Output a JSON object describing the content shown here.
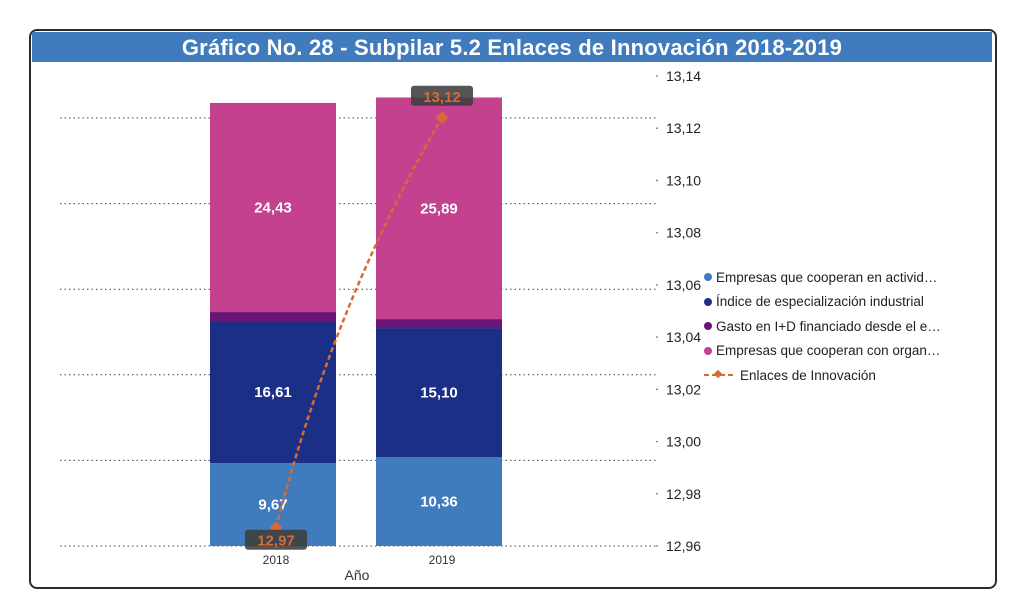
{
  "title": "Gráfico No. 28 - Subpilar 5.2 Enlaces de Innovación 2018-2019",
  "chart_data": {
    "type": "bar",
    "stacked": true,
    "title": "Gráfico No. 28 - Subpilar 5.2 Enlaces de Innovación 2018-2019",
    "xlabel": "Año",
    "ylabel": "",
    "categories": [
      "2018",
      "2019"
    ],
    "ylim": [
      0,
      50
    ],
    "left_axis_visible": false,
    "grid": true,
    "series": [
      {
        "name": "Empresas que cooperan en activid…",
        "type": "bar",
        "color": "#3f7bbd",
        "values": [
          9.67,
          10.36
        ],
        "labels": [
          "9,67",
          "10,36"
        ]
      },
      {
        "name": "Índice de especialización industrial",
        "type": "bar",
        "color": "#1b2f86",
        "values": [
          16.61,
          15.1
        ],
        "labels": [
          "16,61",
          "15,10"
        ]
      },
      {
        "name": "Gasto en I+D financiado desde el e…",
        "type": "bar",
        "color": "#6b1677",
        "values": [
          1.05,
          1.05
        ],
        "labels": [
          "",
          ""
        ]
      },
      {
        "name": "Empresas que cooperan con organ…",
        "type": "bar",
        "color": "#c3418e",
        "values": [
          24.43,
          25.89
        ],
        "labels": [
          "24,43",
          "25,89"
        ]
      },
      {
        "name": "Enlaces de Innovación",
        "type": "line",
        "axis": "right",
        "color": "#d66b36",
        "values": [
          12.967,
          13.124
        ],
        "labels": [
          "12,97",
          "13,12"
        ]
      }
    ],
    "y2lim": [
      12.96,
      13.14
    ],
    "y2_ticks": [
      "12,96",
      "12,98",
      "13,00",
      "13,02",
      "13,04",
      "13,06",
      "13,08",
      "13,10",
      "13,12",
      "13,14"
    ],
    "legend_position": "right"
  }
}
